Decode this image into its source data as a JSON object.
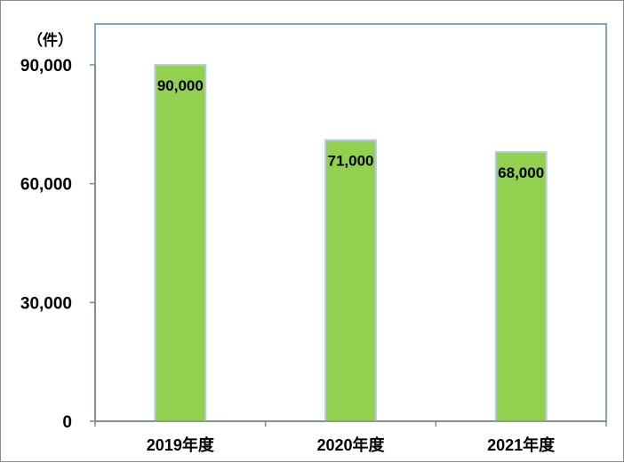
{
  "chart_data": {
    "type": "bar",
    "categories": [
      "2019年度",
      "2020年度",
      "2021年度"
    ],
    "values": [
      90000,
      71000,
      68000
    ],
    "data_labels": [
      "90,000",
      "71,000",
      "68,000"
    ],
    "y_unit": "（件）",
    "ylim": [
      0,
      90000
    ],
    "y_ticks": [
      0,
      30000,
      60000,
      90000
    ],
    "y_tick_labels": [
      "0",
      "30,000",
      "60,000",
      "90,000"
    ],
    "grid": false,
    "legend": "none",
    "colors": {
      "bar_fill": "#92d050",
      "bar_stroke": "#b8cce4",
      "plot_border": "#7fa6c9",
      "axis": "#868686"
    }
  }
}
